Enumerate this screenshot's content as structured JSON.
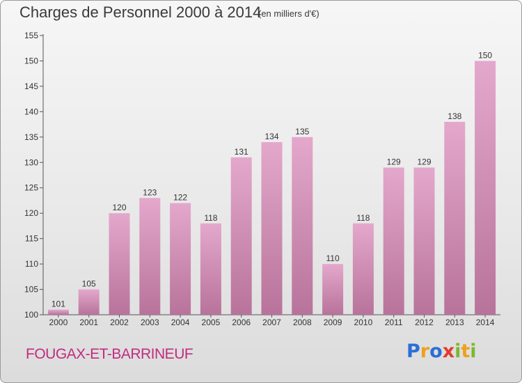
{
  "header": {
    "title": "Charges de Personnel 2000 à 2014",
    "subtitle": "(en milliers d'€)"
  },
  "footer": {
    "place": "FOUGAX-ET-BARRINEUF",
    "logo": {
      "letters": [
        "P",
        "r",
        "o",
        "x",
        "i",
        "t",
        "i"
      ],
      "colors": [
        "#2a6fd6",
        "#f0a01c",
        "#2a6fd6",
        "#e23c2c",
        "#7cb82f",
        "#f0a01c",
        "#7cb82f"
      ]
    }
  },
  "colors": {
    "bar_top": "#e4a8cc",
    "bar_bottom": "#b8739b",
    "place_text": "#c02c7e"
  },
  "chart_data": {
    "type": "bar",
    "title": "Charges de Personnel 2000 à 2014",
    "subtitle": "(en milliers d'€)",
    "categories": [
      "2000",
      "2001",
      "2002",
      "2003",
      "2004",
      "2005",
      "2006",
      "2007",
      "2008",
      "2009",
      "2010",
      "2011",
      "2012",
      "2013",
      "2014"
    ],
    "values": [
      101,
      105,
      120,
      123,
      122,
      118,
      131,
      134,
      135,
      110,
      118,
      129,
      129,
      138,
      150
    ],
    "ylim": [
      100,
      155
    ],
    "yticks": [
      100,
      105,
      110,
      115,
      120,
      125,
      130,
      135,
      140,
      145,
      150,
      155
    ],
    "grid": false,
    "legend": "none"
  }
}
